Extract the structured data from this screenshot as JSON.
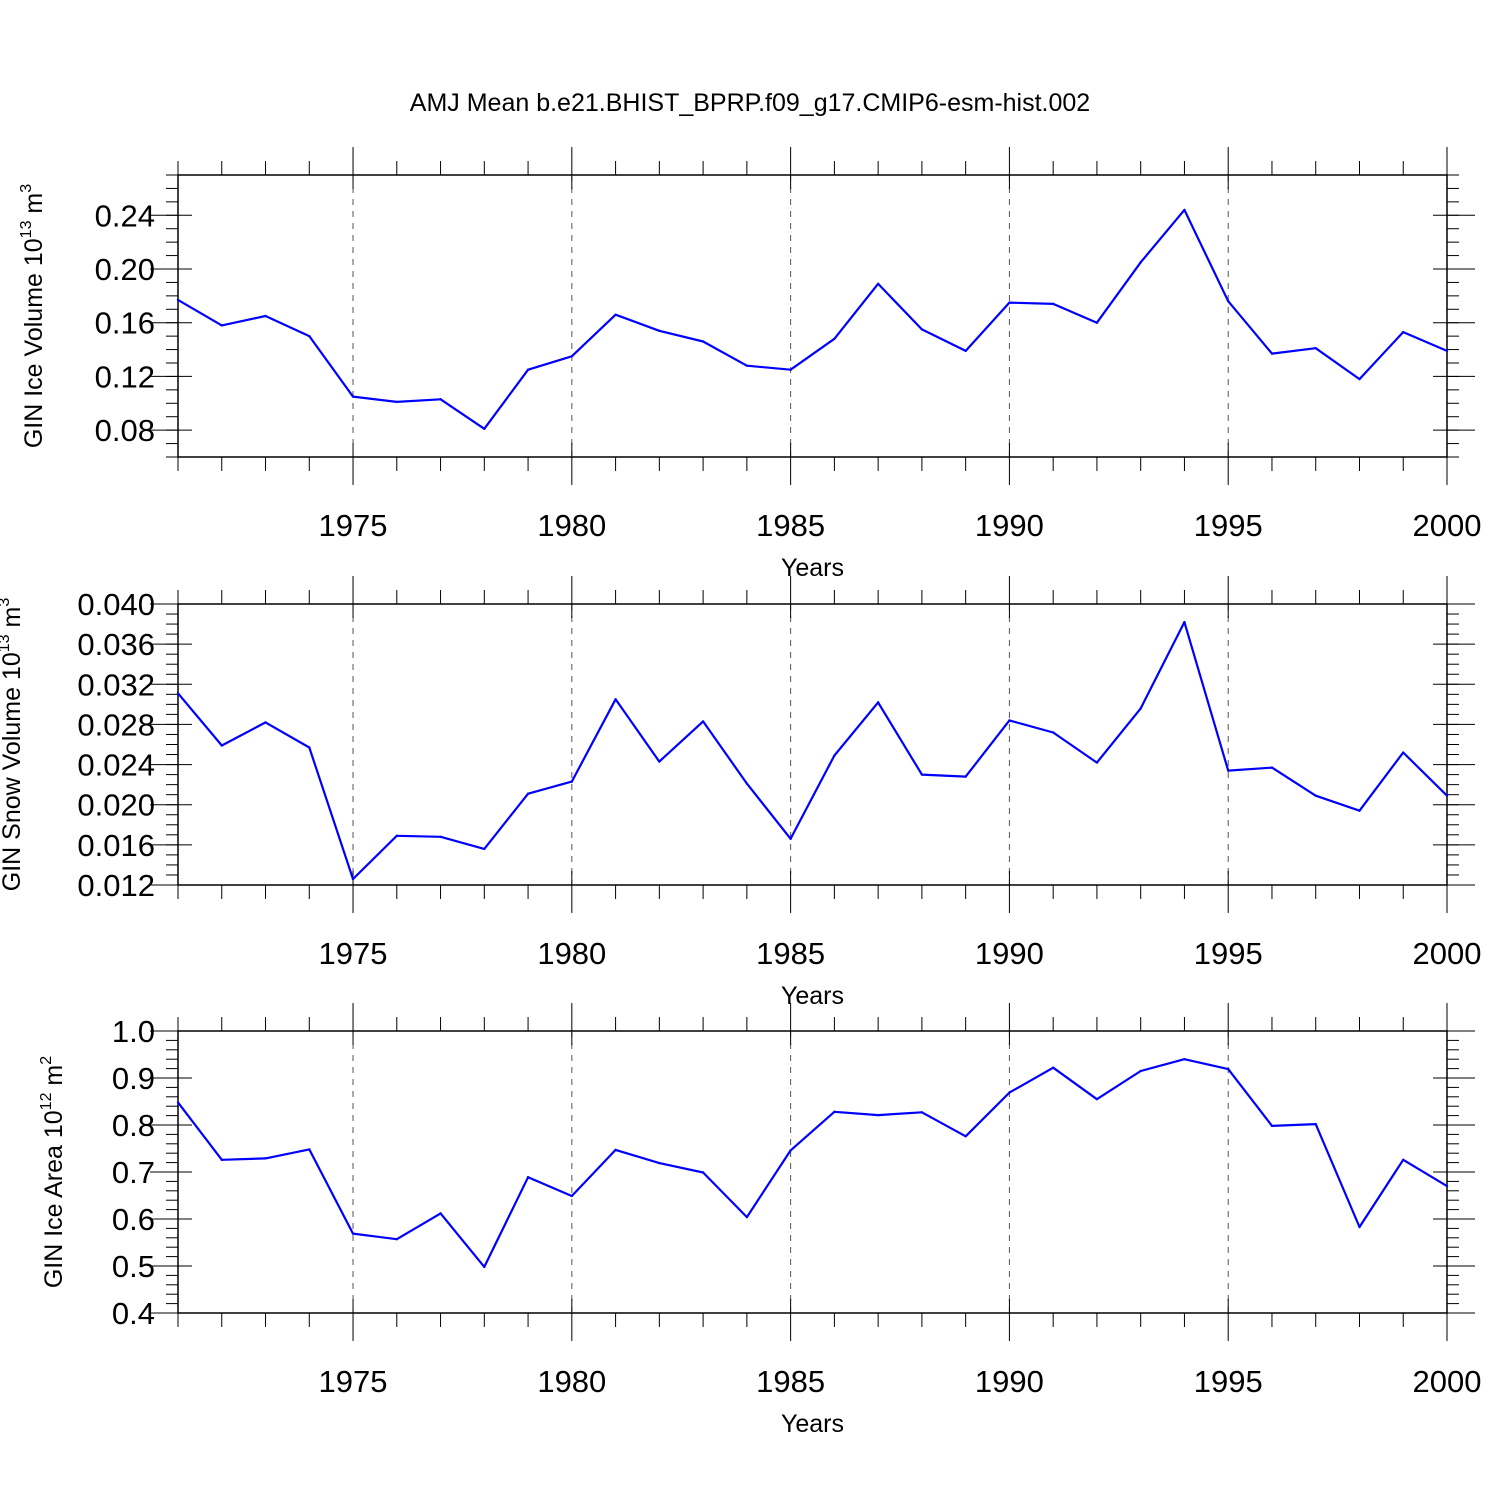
{
  "figure": {
    "title": "AMJ Mean b.e21.BHIST_BPRP.f09_g17.CMIP6-esm-hist.002",
    "line_color": "#0000ff",
    "grid_color": "#555555"
  },
  "chart_data": [
    {
      "type": "line",
      "xlabel": "Years",
      "ylabel": {
        "text": "GIN Ice Volume 10",
        "exp": "13",
        "unit": " m",
        "unit_exp": "3"
      },
      "xlim": [
        1971,
        2000
      ],
      "ylim": [
        0.06,
        0.27
      ],
      "x_ticks": [
        1975,
        1980,
        1985,
        1990,
        1995,
        2000
      ],
      "x_tick_labels": [
        "1975",
        "1980",
        "1985",
        "1990",
        "1995",
        "2000"
      ],
      "y_ticks": [
        0.08,
        0.12,
        0.16,
        0.2,
        0.24
      ],
      "y_tick_labels": [
        "0.08",
        "0.12",
        "0.16",
        "0.20",
        "0.24"
      ],
      "y_minor_step": 0.01,
      "grid": "vertical dashed at major x ticks",
      "x": [
        1971,
        1972,
        1973,
        1974,
        1975,
        1976,
        1977,
        1978,
        1979,
        1980,
        1981,
        1982,
        1983,
        1984,
        1985,
        1986,
        1987,
        1988,
        1989,
        1990,
        1991,
        1992,
        1993,
        1994,
        1995,
        1996,
        1997,
        1998,
        1999,
        2000
      ],
      "values": [
        0.177,
        0.158,
        0.165,
        0.15,
        0.105,
        0.101,
        0.103,
        0.081,
        0.125,
        0.135,
        0.166,
        0.154,
        0.146,
        0.128,
        0.125,
        0.148,
        0.189,
        0.155,
        0.139,
        0.175,
        0.174,
        0.16,
        0.205,
        0.244,
        0.176,
        0.137,
        0.141,
        0.118,
        0.153,
        0.139
      ]
    },
    {
      "type": "line",
      "xlabel": "Years",
      "ylabel": {
        "text": "GIN Snow Volume 10",
        "exp": "13",
        "unit": " m",
        "unit_exp": "3"
      },
      "xlim": [
        1971,
        2000
      ],
      "ylim": [
        0.012,
        0.04
      ],
      "x_ticks": [
        1975,
        1980,
        1985,
        1990,
        1995,
        2000
      ],
      "x_tick_labels": [
        "1975",
        "1980",
        "1985",
        "1990",
        "1995",
        "2000"
      ],
      "y_ticks": [
        0.012,
        0.016,
        0.02,
        0.024,
        0.028,
        0.032,
        0.036,
        0.04
      ],
      "y_tick_labels": [
        "0.012",
        "0.016",
        "0.020",
        "0.024",
        "0.028",
        "0.032",
        "0.036",
        "0.040"
      ],
      "y_minor_step": 0.001,
      "grid": "vertical dashed at major x ticks",
      "x": [
        1971,
        1972,
        1973,
        1974,
        1975,
        1976,
        1977,
        1978,
        1979,
        1980,
        1981,
        1982,
        1983,
        1984,
        1985,
        1986,
        1987,
        1988,
        1989,
        1990,
        1991,
        1992,
        1993,
        1994,
        1995,
        1996,
        1997,
        1998,
        1999,
        2000
      ],
      "values": [
        0.0311,
        0.0259,
        0.0282,
        0.0257,
        0.0126,
        0.0169,
        0.0168,
        0.0156,
        0.0211,
        0.0223,
        0.0305,
        0.0243,
        0.0283,
        0.0221,
        0.0166,
        0.0249,
        0.0302,
        0.023,
        0.0228,
        0.0284,
        0.0272,
        0.0242,
        0.0296,
        0.0382,
        0.0234,
        0.0237,
        0.0209,
        0.0194,
        0.0252,
        0.0209
      ]
    },
    {
      "type": "line",
      "xlabel": "Years",
      "ylabel": {
        "text": "GIN Ice Area 10",
        "exp": "12",
        "unit": " m",
        "unit_exp": "2"
      },
      "xlim": [
        1971,
        2000
      ],
      "ylim": [
        0.4,
        1.0
      ],
      "x_ticks": [
        1975,
        1980,
        1985,
        1990,
        1995,
        2000
      ],
      "x_tick_labels": [
        "1975",
        "1980",
        "1985",
        "1990",
        "1995",
        "2000"
      ],
      "y_ticks": [
        0.4,
        0.5,
        0.6,
        0.7,
        0.8,
        0.9,
        1.0
      ],
      "y_tick_labels": [
        "0.4",
        "0.5",
        "0.6",
        "0.7",
        "0.8",
        "0.9",
        "1.0"
      ],
      "y_minor_step": 0.02,
      "grid": "vertical dashed at major x ticks",
      "x": [
        1971,
        1972,
        1973,
        1974,
        1975,
        1976,
        1977,
        1978,
        1979,
        1980,
        1981,
        1982,
        1983,
        1984,
        1985,
        1986,
        1987,
        1988,
        1989,
        1990,
        1991,
        1992,
        1993,
        1994,
        1995,
        1996,
        1997,
        1998,
        1999,
        2000
      ],
      "values": [
        0.848,
        0.726,
        0.729,
        0.748,
        0.569,
        0.557,
        0.612,
        0.498,
        0.689,
        0.649,
        0.747,
        0.719,
        0.699,
        0.604,
        0.746,
        0.828,
        0.821,
        0.827,
        0.776,
        0.869,
        0.922,
        0.855,
        0.915,
        0.94,
        0.919,
        0.798,
        0.802,
        0.583,
        0.726,
        0.67
      ]
    }
  ]
}
